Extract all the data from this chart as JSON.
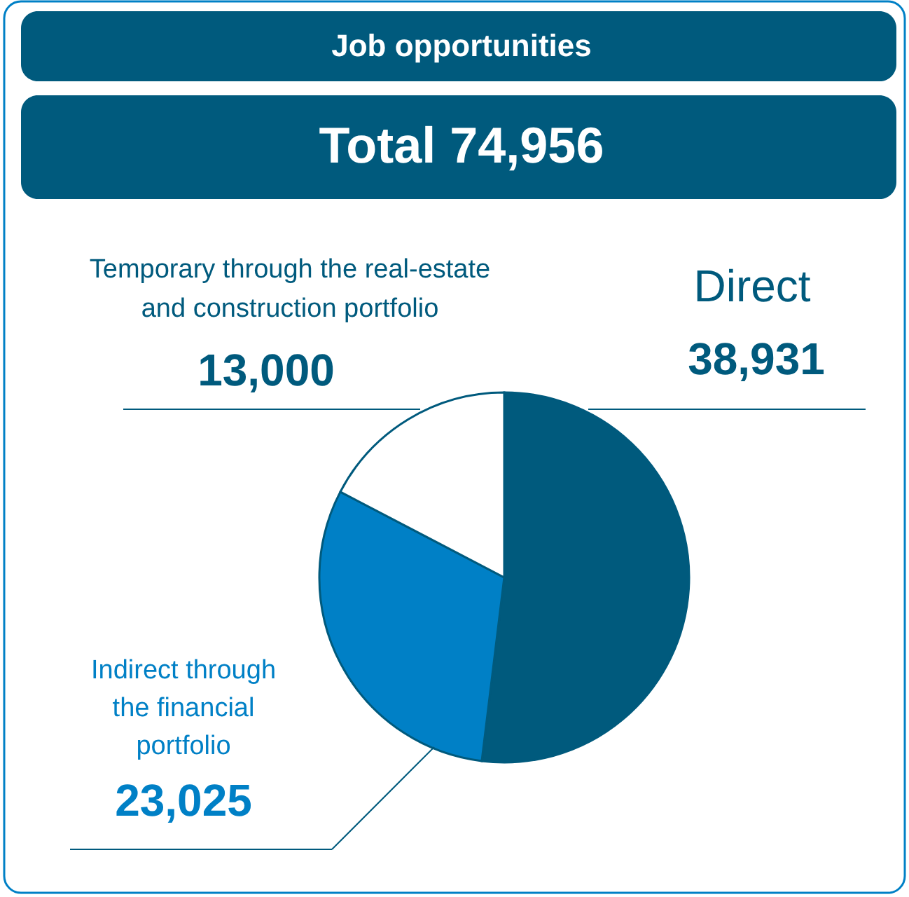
{
  "chart_data": {
    "type": "pie",
    "title": "Job opportunities",
    "subtitle": "Total 74,956",
    "categories": [
      "Direct",
      "Indirect through\nthe financial\nportfolio",
      "Temporary through the real-estate\nand construction portfolio"
    ],
    "values": [
      38931,
      23025,
      13000
    ],
    "colors": [
      "#005a7d",
      "#0080c6",
      "#ffffff"
    ],
    "value_labels": [
      "38,931",
      "23,025",
      "13,000"
    ]
  }
}
